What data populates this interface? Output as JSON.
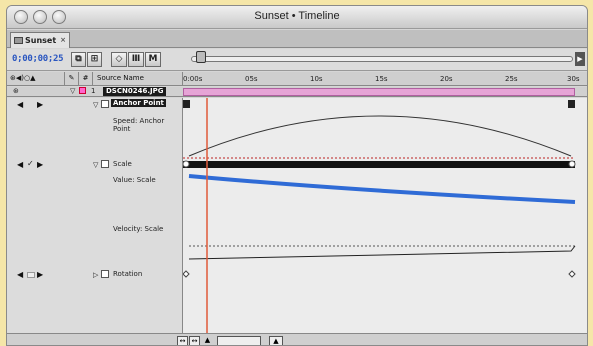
{
  "window": {
    "title": "Sunset • Timeline"
  },
  "tab": {
    "label": "Sunset",
    "close": "×"
  },
  "controls": {
    "timecode": "0;00;00;25",
    "buttons": [
      "⧉",
      "⊞",
      "◇",
      "Ⅲ",
      "M"
    ]
  },
  "header": {
    "source_name": "Source Name",
    "hash": "#",
    "ruler_ticks": [
      "0:00s",
      "05s",
      "10s",
      "15s",
      "20s",
      "25s",
      "30s"
    ]
  },
  "layer": {
    "number": "1",
    "name": "DSCN0246.JPG"
  },
  "properties": {
    "anchor_point": "Anchor Point",
    "speed_label": "Speed: Anchor Point",
    "scale": "Scale",
    "value_label": "Value: Scale",
    "velocity_label": "Velocity: Scale",
    "rotation": "Rotation"
  },
  "colors": {
    "background": "#f5e6a8",
    "timecode": "#2a56c0",
    "current_time_indicator": "#e05a3a",
    "value_curve": "#2f6bd6",
    "layer_bar": "#e6a4d6"
  }
}
